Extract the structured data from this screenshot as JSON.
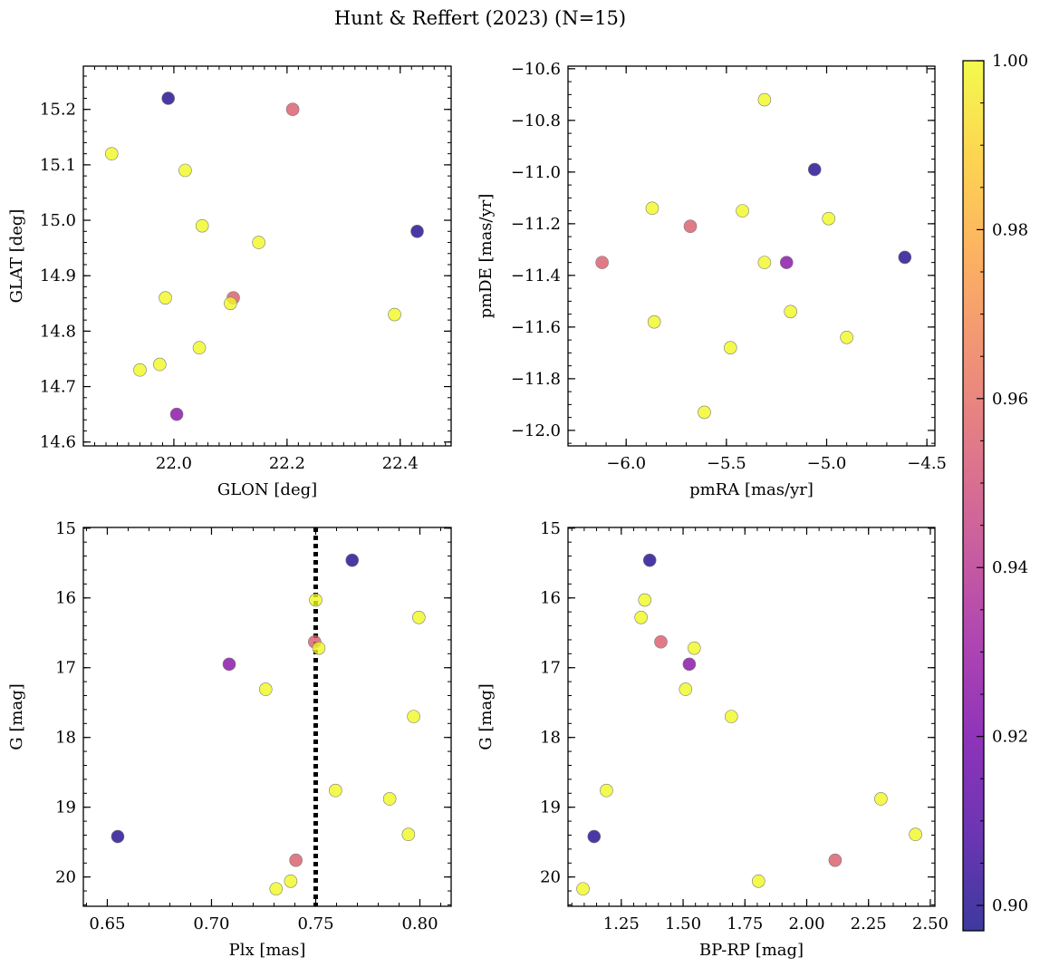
{
  "figure_title": "Hunt & Reffert (2023) (N=15)",
  "colorbar": {
    "min": 0.897,
    "max": 1.0,
    "ticks": [
      0.9,
      0.92,
      0.94,
      0.96,
      0.98,
      1.0
    ],
    "tick_labels": [
      "0.90",
      "0.92",
      "0.94",
      "0.96",
      "0.98",
      "1.00"
    ],
    "colormap": "plasma",
    "stops": [
      "#0d0887",
      "#46039f",
      "#7201a8",
      "#9c179e",
      "#bd3786",
      "#d8576b",
      "#ed7953",
      "#fb9f3a",
      "#fdca26",
      "#f0f921"
    ]
  },
  "chart_data": [
    {
      "id": "glon-glat",
      "type": "scatter",
      "xlabel": "GLON [deg]",
      "ylabel": "GLAT [deg]",
      "xlim": [
        21.84,
        22.49
      ],
      "ylim": [
        14.593,
        15.278
      ],
      "invert_y": false,
      "xticks": [
        22.0,
        22.2,
        22.4
      ],
      "xtick_labels": [
        "22.0",
        "22.2",
        "22.4"
      ],
      "yticks": [
        14.6,
        14.7,
        14.8,
        14.9,
        15.0,
        15.1,
        15.2
      ],
      "ytick_labels": [
        "14.6",
        "14.7",
        "14.8",
        "14.9",
        "15.0",
        "15.1",
        "15.2"
      ],
      "x_minor": 0.02,
      "y_minor": 0.02,
      "points": [
        {
          "x": 21.99,
          "y": 15.22,
          "c": 0.9
        },
        {
          "x": 22.21,
          "y": 15.2,
          "c": 0.955
        },
        {
          "x": 21.89,
          "y": 15.12,
          "c": 1.0
        },
        {
          "x": 22.02,
          "y": 15.09,
          "c": 1.0
        },
        {
          "x": 22.05,
          "y": 14.99,
          "c": 1.0
        },
        {
          "x": 22.43,
          "y": 14.98,
          "c": 0.9
        },
        {
          "x": 22.15,
          "y": 14.96,
          "c": 1.0
        },
        {
          "x": 21.985,
          "y": 14.86,
          "c": 1.0
        },
        {
          "x": 22.105,
          "y": 14.86,
          "c": 0.955
        },
        {
          "x": 22.1,
          "y": 14.85,
          "c": 1.0
        },
        {
          "x": 22.39,
          "y": 14.83,
          "c": 1.0
        },
        {
          "x": 22.045,
          "y": 14.77,
          "c": 1.0
        },
        {
          "x": 21.975,
          "y": 14.74,
          "c": 1.0
        },
        {
          "x": 21.94,
          "y": 14.73,
          "c": 1.0
        },
        {
          "x": 22.005,
          "y": 14.65,
          "c": 0.925
        }
      ]
    },
    {
      "id": "pmra-pmde",
      "type": "scatter",
      "xlabel": "pmRA [mas/yr]",
      "ylabel": "pmDE [mas/yr]",
      "xlim": [
        -6.29,
        -4.46
      ],
      "ylim": [
        -12.06,
        -10.59
      ],
      "invert_y": false,
      "xticks": [
        -6.0,
        -5.5,
        -5.0,
        -4.5
      ],
      "xtick_labels": [
        "−6.0",
        "−5.5",
        "−5.0",
        "−4.5"
      ],
      "yticks": [
        -12.0,
        -11.8,
        -11.6,
        -11.4,
        -11.2,
        -11.0,
        -10.8,
        -10.6
      ],
      "ytick_labels": [
        "−12.0",
        "−11.8",
        "−11.6",
        "−11.4",
        "−11.2",
        "−11.0",
        "−10.8",
        "−10.6"
      ],
      "x_minor": 0.1,
      "y_minor": 0.05,
      "points": [
        {
          "x": -5.31,
          "y": -10.72,
          "c": 1.0
        },
        {
          "x": -5.06,
          "y": -10.99,
          "c": 0.9
        },
        {
          "x": -5.87,
          "y": -11.14,
          "c": 1.0
        },
        {
          "x": -5.42,
          "y": -11.15,
          "c": 1.0
        },
        {
          "x": -4.99,
          "y": -11.18,
          "c": 1.0
        },
        {
          "x": -5.68,
          "y": -11.21,
          "c": 0.955
        },
        {
          "x": -6.12,
          "y": -11.35,
          "c": 0.955
        },
        {
          "x": -5.31,
          "y": -11.35,
          "c": 1.0
        },
        {
          "x": -5.2,
          "y": -11.35,
          "c": 0.925
        },
        {
          "x": -4.61,
          "y": -11.33,
          "c": 0.9
        },
        {
          "x": -5.18,
          "y": -11.54,
          "c": 1.0
        },
        {
          "x": -5.86,
          "y": -11.58,
          "c": 1.0
        },
        {
          "x": -4.9,
          "y": -11.64,
          "c": 1.0
        },
        {
          "x": -5.48,
          "y": -11.68,
          "c": 1.0
        },
        {
          "x": -5.61,
          "y": -11.93,
          "c": 1.0
        }
      ]
    },
    {
      "id": "plx-g",
      "type": "scatter",
      "xlabel": "Plx [mas]",
      "ylabel": "G [mag]",
      "xlim": [
        0.6385,
        0.815
      ],
      "ylim": [
        14.99,
        20.42
      ],
      "invert_y": true,
      "vline": {
        "x": 0.75,
        "style": "dotted"
      },
      "xticks": [
        0.65,
        0.7,
        0.75,
        0.8
      ],
      "xtick_labels": [
        "0.65",
        "0.70",
        "0.75",
        "0.80"
      ],
      "yticks": [
        15,
        16,
        17,
        18,
        19,
        20
      ],
      "ytick_labels": [
        "15",
        "16",
        "17",
        "18",
        "19",
        "20"
      ],
      "x_minor": 0.01,
      "y_minor": 0.2,
      "points": [
        {
          "x": 0.7675,
          "y": 15.46,
          "c": 0.9
        },
        {
          "x": 0.75,
          "y": 16.03,
          "c": 1.0
        },
        {
          "x": 0.7995,
          "y": 16.28,
          "c": 1.0
        },
        {
          "x": 0.7495,
          "y": 16.63,
          "c": 0.955
        },
        {
          "x": 0.7515,
          "y": 16.72,
          "c": 1.0
        },
        {
          "x": 0.7085,
          "y": 16.95,
          "c": 0.925
        },
        {
          "x": 0.726,
          "y": 17.31,
          "c": 1.0
        },
        {
          "x": 0.797,
          "y": 17.7,
          "c": 1.0
        },
        {
          "x": 0.7595,
          "y": 18.76,
          "c": 1.0
        },
        {
          "x": 0.7855,
          "y": 18.88,
          "c": 1.0
        },
        {
          "x": 0.655,
          "y": 19.42,
          "c": 0.9
        },
        {
          "x": 0.7945,
          "y": 19.39,
          "c": 1.0
        },
        {
          "x": 0.7405,
          "y": 19.76,
          "c": 0.955
        },
        {
          "x": 0.738,
          "y": 20.06,
          "c": 1.0
        },
        {
          "x": 0.731,
          "y": 20.17,
          "c": 1.0
        }
      ]
    },
    {
      "id": "bprp-g",
      "type": "scatter",
      "xlabel": "BP-RP [mag]",
      "ylabel": "G [mag]",
      "xlim": [
        1.0345,
        2.5185
      ],
      "ylim": [
        14.99,
        20.42
      ],
      "invert_y": true,
      "xticks": [
        1.25,
        1.5,
        1.75,
        2.0,
        2.25,
        2.5
      ],
      "xtick_labels": [
        "1.25",
        "1.50",
        "1.75",
        "2.00",
        "2.25",
        "2.50"
      ],
      "yticks": [
        15,
        16,
        17,
        18,
        19,
        20
      ],
      "ytick_labels": [
        "15",
        "16",
        "17",
        "18",
        "19",
        "20"
      ],
      "x_minor": 0.05,
      "y_minor": 0.2,
      "points": [
        {
          "x": 1.365,
          "y": 15.46,
          "c": 0.9
        },
        {
          "x": 1.345,
          "y": 16.03,
          "c": 1.0
        },
        {
          "x": 1.33,
          "y": 16.28,
          "c": 1.0
        },
        {
          "x": 1.41,
          "y": 16.63,
          "c": 0.955
        },
        {
          "x": 1.545,
          "y": 16.72,
          "c": 1.0
        },
        {
          "x": 1.525,
          "y": 16.95,
          "c": 0.925
        },
        {
          "x": 1.51,
          "y": 17.31,
          "c": 1.0
        },
        {
          "x": 1.695,
          "y": 17.7,
          "c": 1.0
        },
        {
          "x": 1.19,
          "y": 18.76,
          "c": 1.0
        },
        {
          "x": 2.3,
          "y": 18.88,
          "c": 1.0
        },
        {
          "x": 1.14,
          "y": 19.42,
          "c": 0.9
        },
        {
          "x": 2.44,
          "y": 19.39,
          "c": 1.0
        },
        {
          "x": 2.115,
          "y": 19.76,
          "c": 0.955
        },
        {
          "x": 1.805,
          "y": 20.06,
          "c": 1.0
        },
        {
          "x": 1.095,
          "y": 20.17,
          "c": 1.0
        }
      ]
    }
  ]
}
